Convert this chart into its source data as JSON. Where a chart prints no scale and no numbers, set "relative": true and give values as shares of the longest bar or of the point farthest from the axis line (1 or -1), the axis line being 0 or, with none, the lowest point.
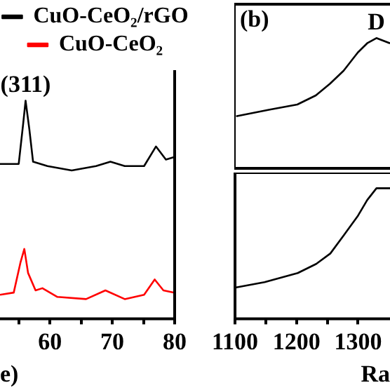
{
  "chart_data": [
    {
      "type": "line",
      "relative": true,
      "xlabel": "e)",
      "legend": "top",
      "marker": "none",
      "xlim": [
        52,
        80
      ],
      "xticks": [
        {
          "value": 55,
          "label": null
        },
        60,
        {
          "value": 65,
          "label": null
        },
        70,
        {
          "value": 75,
          "label": null
        },
        80
      ],
      "annotations": [
        {
          "text": "(311)",
          "x": 56.1,
          "y": 1.0
        }
      ],
      "series": [
        {
          "name": "CuO-CeO₂/rGO",
          "color": "#000000",
          "x": [
            52,
            55,
            55.7,
            56.1,
            56.7,
            57.3,
            59.6,
            63.5,
            67.4,
            69.7,
            72,
            75.1,
            77,
            78.6,
            79.8
          ],
          "values": [
            0.71,
            0.71,
            0.89,
            1.0,
            0.87,
            0.72,
            0.7,
            0.68,
            0.7,
            0.72,
            0.7,
            0.7,
            0.79,
            0.73,
            0.74
          ]
        },
        {
          "name": "CuO-CeO₂",
          "color": "#ff0000",
          "x": [
            52,
            54.2,
            55.3,
            55.9,
            56.5,
            57.7,
            58.8,
            61.2,
            65.8,
            68.9,
            72,
            75.1,
            76.8,
            78.2,
            79.8
          ],
          "values": [
            0.11,
            0.12,
            0.26,
            0.32,
            0.21,
            0.13,
            0.14,
            0.1,
            0.09,
            0.13,
            0.09,
            0.11,
            0.18,
            0.13,
            0.12
          ]
        }
      ]
    },
    {
      "type": "line",
      "relative": true,
      "tick_labels": false,
      "marker": "none",
      "xlim": [
        1100,
        1352
      ],
      "xticks": [
        1100,
        1200,
        1300
      ],
      "annotations": [
        "(b)",
        {
          "text": "D",
          "x": 1330,
          "y": 1.0
        }
      ],
      "x": [
        1103,
        1156,
        1202,
        1232,
        1255,
        1277,
        1300,
        1315,
        1330,
        1352
      ],
      "series": [
        {
          "color": "#000000",
          "values": [
            0.4,
            0.45,
            0.49,
            0.56,
            0.65,
            0.75,
            0.89,
            0.96,
            1.0,
            0.96
          ]
        }
      ]
    },
    {
      "type": "line",
      "relative": true,
      "tick_labels": "x",
      "xlabel": "Ra",
      "marker": "none",
      "xlim": [
        1100,
        1352
      ],
      "xticks": [
        1100,
        {
          "value": 1150,
          "label": null
        },
        1200,
        {
          "value": 1250,
          "label": null
        },
        1300
      ],
      "x": [
        1102,
        1148,
        1202,
        1232,
        1255,
        1277,
        1300,
        1315,
        1330,
        1352
      ],
      "series": [
        {
          "color": "#000000",
          "values": [
            0.24,
            0.28,
            0.35,
            0.42,
            0.5,
            0.64,
            0.79,
            0.91,
            1.0,
            1.0
          ]
        }
      ]
    }
  ]
}
